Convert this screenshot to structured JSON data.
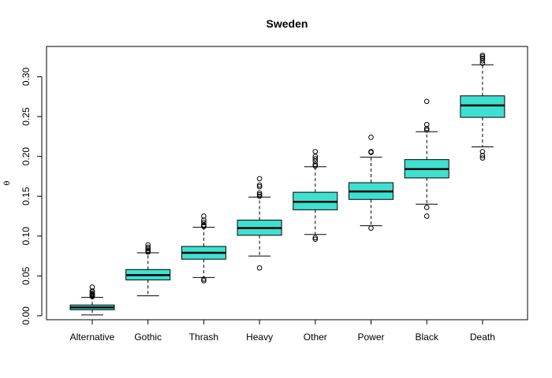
{
  "chart_data": {
    "type": "boxplot",
    "title": "Sweden",
    "xlabel": "",
    "ylabel": "θ",
    "ylim": [
      -0.005,
      0.338
    ],
    "yticks": [
      0.0,
      0.05,
      0.1,
      0.15,
      0.2,
      0.25,
      0.3
    ],
    "ytick_labels": [
      "0.00",
      "0.05",
      "0.10",
      "0.15",
      "0.20",
      "0.25",
      "0.30"
    ],
    "box_color": "#40E0D0",
    "categories": [
      "Alternative",
      "Gothic",
      "Thrash",
      "Heavy",
      "Other",
      "Power",
      "Black",
      "Death"
    ],
    "boxes": [
      {
        "q1": 0.0075,
        "median": 0.0105,
        "q3": 0.0135,
        "whisker_low": 0.001,
        "whisker_high": 0.023,
        "outliers": [
          0.024,
          0.025,
          0.026,
          0.027,
          0.028,
          0.03,
          0.031,
          0.036
        ]
      },
      {
        "q1": 0.045,
        "median": 0.051,
        "q3": 0.058,
        "whisker_low": 0.025,
        "whisker_high": 0.079,
        "outliers": [
          0.08,
          0.081,
          0.082,
          0.084,
          0.086,
          0.089
        ]
      },
      {
        "q1": 0.071,
        "median": 0.079,
        "q3": 0.087,
        "whisker_low": 0.048,
        "whisker_high": 0.111,
        "outliers": [
          0.044,
          0.046,
          0.112,
          0.113,
          0.114,
          0.117,
          0.12,
          0.125
        ]
      },
      {
        "q1": 0.101,
        "median": 0.11,
        "q3": 0.12,
        "whisker_low": 0.075,
        "whisker_high": 0.149,
        "outliers": [
          0.06,
          0.15,
          0.152,
          0.154,
          0.162,
          0.164,
          0.172
        ]
      },
      {
        "q1": 0.133,
        "median": 0.143,
        "q3": 0.155,
        "whisker_low": 0.102,
        "whisker_high": 0.187,
        "outliers": [
          0.096,
          0.098,
          0.188,
          0.19,
          0.194,
          0.197,
          0.2,
          0.206
        ]
      },
      {
        "q1": 0.146,
        "median": 0.156,
        "q3": 0.167,
        "whisker_low": 0.113,
        "whisker_high": 0.199,
        "outliers": [
          0.11,
          0.205,
          0.206,
          0.224
        ]
      },
      {
        "q1": 0.173,
        "median": 0.184,
        "q3": 0.196,
        "whisker_low": 0.14,
        "whisker_high": 0.231,
        "outliers": [
          0.125,
          0.136,
          0.233,
          0.235,
          0.24,
          0.269
        ]
      },
      {
        "q1": 0.249,
        "median": 0.264,
        "q3": 0.276,
        "whisker_low": 0.212,
        "whisker_high": 0.315,
        "outliers": [
          0.198,
          0.201,
          0.206,
          0.317,
          0.32,
          0.323,
          0.325,
          0.327
        ]
      }
    ]
  }
}
